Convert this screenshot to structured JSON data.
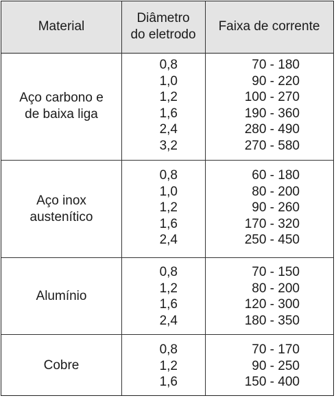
{
  "header": {
    "material": "Material",
    "diameter": "Diâmetro\ndo eletrodo",
    "current": "Faixa de corrente"
  },
  "groups": [
    {
      "material_lines": [
        "Aço carbono e",
        "de baixa liga"
      ],
      "rows": [
        {
          "diameter": "0,8",
          "current": "70 - 180"
        },
        {
          "diameter": "1,0",
          "current": "90 - 220"
        },
        {
          "diameter": "1,2",
          "current": "100 - 270"
        },
        {
          "diameter": "1,6",
          "current": "190 - 360"
        },
        {
          "diameter": "2,4",
          "current": "280 - 490"
        },
        {
          "diameter": "3,2",
          "current": "270 - 580"
        }
      ]
    },
    {
      "material_lines": [
        "Aço inox",
        "austenítico"
      ],
      "rows": [
        {
          "diameter": "0,8",
          "current": "60 - 180"
        },
        {
          "diameter": "1,0",
          "current": "80 - 200"
        },
        {
          "diameter": "1,2",
          "current": "90 - 260"
        },
        {
          "diameter": "1,6",
          "current": "170 - 320"
        },
        {
          "diameter": "2,4",
          "current": "250 - 450"
        }
      ]
    },
    {
      "material_lines": [
        "Alumínio"
      ],
      "rows": [
        {
          "diameter": "0,8",
          "current": "70 - 150"
        },
        {
          "diameter": "1,2",
          "current": "80 - 200"
        },
        {
          "diameter": "1,6",
          "current": "120 - 300"
        },
        {
          "diameter": "2,4",
          "current": "180 - 350"
        }
      ]
    },
    {
      "material_lines": [
        "Cobre"
      ],
      "rows": [
        {
          "diameter": "0,8",
          "current": "70 - 170"
        },
        {
          "diameter": "1,2",
          "current": "90 - 250"
        },
        {
          "diameter": "1,6",
          "current": "150 - 400"
        }
      ]
    }
  ]
}
